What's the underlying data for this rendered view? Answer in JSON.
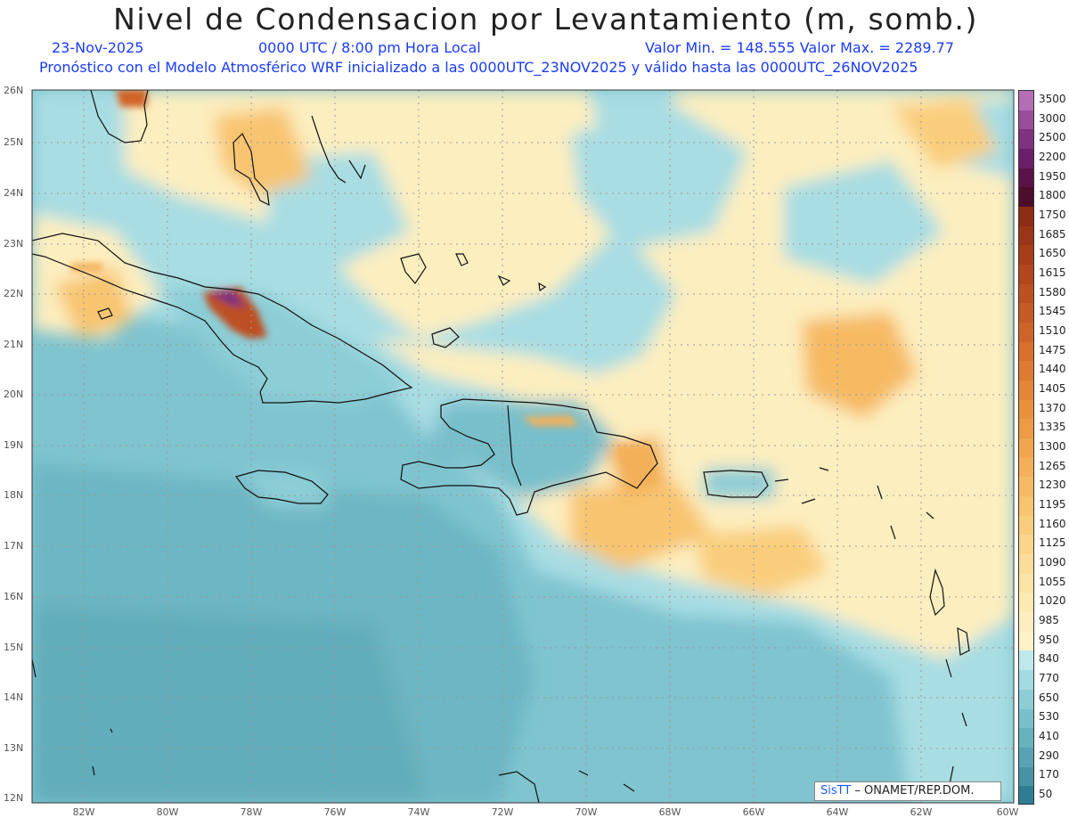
{
  "title": "Nivel de Condensacion por Levantamiento (m, somb.)",
  "subtitle": {
    "date": "23-Nov-2025",
    "time": "0000 UTC / 8:00 pm Hora Local",
    "range": "Valor Min. = 148.555   Valor Max. = 2289.77",
    "forecast": "Pronóstico con el Modelo Atmosférico WRF inicializado a las 0000UTC_23NOV2025 y válido hasta las  0000UTC_26NOV2025"
  },
  "lat_labels": [
    "26N",
    "25N",
    "24N",
    "23N",
    "22N",
    "21N",
    "20N",
    "19N",
    "18N",
    "17N",
    "16N",
    "15N",
    "14N",
    "13N",
    "12N"
  ],
  "lon_labels": [
    "82W",
    "80W",
    "78W",
    "76W",
    "74W",
    "72W",
    "70W",
    "68W",
    "66W",
    "64W",
    "62W",
    "60W"
  ],
  "legend": {
    "labels": [
      "3500",
      "3000",
      "2500",
      "2200",
      "1950",
      "1800",
      "1750",
      "1685",
      "1650",
      "1615",
      "1580",
      "1545",
      "1510",
      "1475",
      "1440",
      "1405",
      "1370",
      "1335",
      "1300",
      "1265",
      "1230",
      "1195",
      "1160",
      "1125",
      "1090",
      "1055",
      "1020",
      "985",
      "950",
      "840",
      "770",
      "650",
      "530",
      "410",
      "290",
      "170",
      "50"
    ],
    "colors": [
      "#b46fb4",
      "#9a4d9a",
      "#7e3380",
      "#6a1f6a",
      "#5a1246",
      "#4c0e2a",
      "#8f2c14",
      "#9c3517",
      "#a83d1a",
      "#b3461d",
      "#bd5020",
      "#c75a24",
      "#d06428",
      "#d86f2c",
      "#df7a31",
      "#e58536",
      "#ea903c",
      "#ee9b44",
      "#f1a64e",
      "#f4b058",
      "#f6ba63",
      "#f8c46f",
      "#f9cd7c",
      "#fad58a",
      "#fbdc98",
      "#fce3a6",
      "#fde9b2",
      "#fdeebf",
      "#fdf2c7",
      "#bfe8ec",
      "#a3dbe2",
      "#8ccdd6",
      "#79bfcb",
      "#68b1bf",
      "#58a2b3",
      "#4892a6",
      "#2f7d95"
    ]
  },
  "credit": {
    "logo": "SisTT",
    "text": " –  ONAMET/REP.DOM."
  },
  "colors": {
    "sea_base": "#7fc4cf",
    "warm": "#fde9b2",
    "orange": "#f5b060",
    "land_outline": "#111111"
  }
}
